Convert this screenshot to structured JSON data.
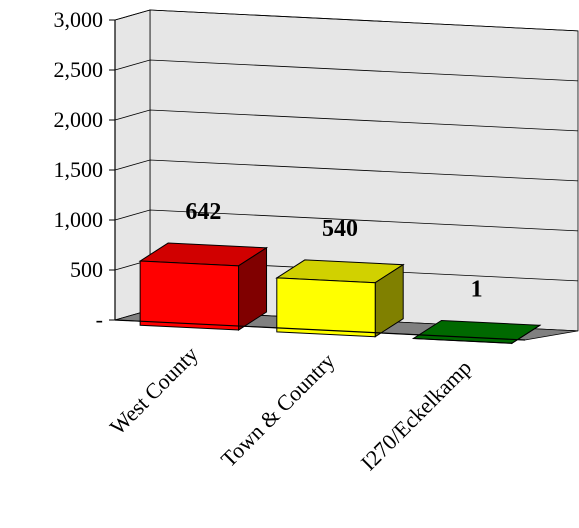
{
  "chart_data": {
    "type": "bar",
    "categories": [
      "West County",
      "Town & Country",
      "I270/Eckelkamp"
    ],
    "values": [
      642,
      540,
      1
    ],
    "data_labels": [
      "642",
      "540",
      "1"
    ],
    "bar_colors": [
      "#FF0000",
      "#FFFF00",
      "#008000"
    ],
    "y_ticks": [
      0,
      500,
      1000,
      1500,
      2000,
      2500,
      3000
    ],
    "y_tick_labels": [
      "-",
      "500",
      "1,000",
      "1,500",
      "2,000",
      "2,500",
      "3,000"
    ],
    "ylim": [
      0,
      3000
    ],
    "grid": true,
    "style": "3d-column",
    "wall_color": "#E6E6E6",
    "floor_color": "#808080"
  }
}
